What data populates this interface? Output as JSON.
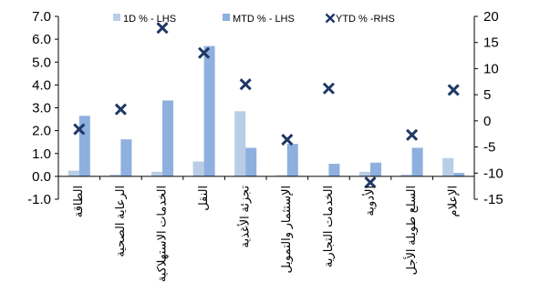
{
  "chart_data": {
    "type": "bar",
    "categories": [
      "الطاقة",
      "الرعاية الصحية",
      "الخدمات الاستهلاكية",
      "النقل",
      "تجزئة الأغذية",
      "الإستثمار والتمويل",
      "الخدمات التجارية",
      "الأدوية",
      "السلع طويلة الأجل",
      "الإعلام"
    ],
    "series": [
      {
        "name": "1D % - LHS",
        "axis": "left",
        "kind": "bar",
        "color": "#b9cde6",
        "values": [
          0.25,
          0.08,
          0.2,
          0.65,
          2.85,
          0.05,
          0.0,
          0.2,
          0.08,
          0.8
        ]
      },
      {
        "name": "MTD % - LHS",
        "axis": "left",
        "kind": "bar",
        "color": "#8eb0df",
        "values": [
          2.65,
          1.62,
          3.32,
          5.7,
          1.25,
          1.42,
          0.55,
          0.6,
          1.25,
          0.15
        ]
      },
      {
        "name": "YTD % -RHS",
        "axis": "right",
        "kind": "marker",
        "color": "#1f3864",
        "values": [
          -1.6,
          2.2,
          17.8,
          13.0,
          7.0,
          -3.6,
          6.2,
          -11.8,
          -2.7,
          5.9
        ]
      }
    ],
    "left_axis": {
      "range": [
        -1.0,
        7.0
      ],
      "ticks": [
        "-1.0",
        "0.0",
        "1.0",
        "2.0",
        "3.0",
        "4.0",
        "5.0",
        "6.0",
        "7.0"
      ]
    },
    "right_axis": {
      "range": [
        -15,
        20
      ],
      "ticks": [
        "-15",
        "-10",
        "-5",
        "0",
        "5",
        "10",
        "15",
        "20"
      ]
    },
    "grid": false,
    "legend_position": "top"
  }
}
